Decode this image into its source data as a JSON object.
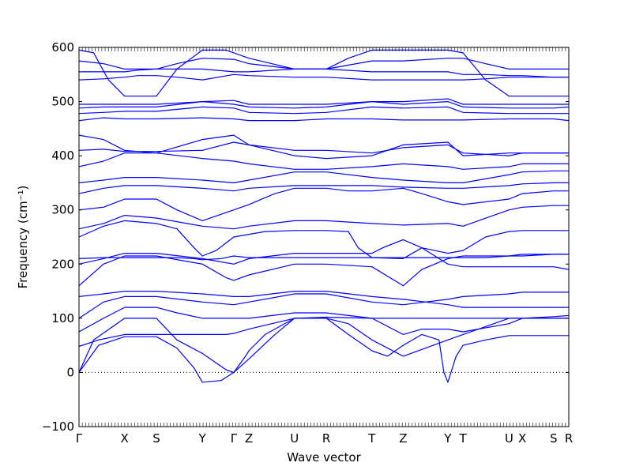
{
  "chart_data": {
    "type": "line",
    "title": "",
    "xlabel": "Wave vector",
    "ylabel": "Frequency (cm⁻¹)",
    "ylim": [
      -100,
      600
    ],
    "yticks": [
      -100,
      0,
      100,
      200,
      300,
      400,
      500,
      600
    ],
    "xlim": [
      0,
      1
    ],
    "high_symmetry_points": [
      {
        "label": "Γ",
        "x": 0.0
      },
      {
        "label": "X",
        "x": 0.093
      },
      {
        "label": "S",
        "x": 0.158
      },
      {
        "label": "Y",
        "x": 0.252
      },
      {
        "label": "Γ",
        "x": 0.316
      },
      {
        "label": "Z",
        "x": 0.347
      },
      {
        "label": "U",
        "x": 0.44
      },
      {
        "label": "R",
        "x": 0.505
      },
      {
        "label": "T",
        "x": 0.598
      },
      {
        "label": "Z",
        "x": 0.662
      },
      {
        "label": "Y",
        "x": 0.753
      },
      {
        "label": "T",
        "x": 0.784
      },
      {
        "label": "U",
        "x": 0.878
      },
      {
        "label": "X",
        "x": 0.905
      },
      {
        "label": "S",
        "x": 0.969
      },
      {
        "label": "R",
        "x": 1.0
      }
    ],
    "zero_line": true,
    "series_color": "#0000ff",
    "series": [
      {
        "x": [
          0,
          0.04,
          0.093,
          0.158,
          0.2,
          0.235,
          0.252,
          0.29,
          0.316,
          0.34,
          0.347,
          0.38,
          0.44,
          0.505,
          0.55,
          0.598,
          0.63,
          0.662,
          0.7,
          0.735,
          0.745,
          0.753,
          0.77,
          0.784,
          0.83,
          0.878,
          0.905,
          0.969,
          1.0
        ],
        "y": [
          0,
          50,
          66,
          66,
          45,
          8,
          -18,
          -15,
          0,
          30,
          40,
          70,
          100,
          100,
          70,
          40,
          30,
          50,
          70,
          60,
          0,
          -18,
          30,
          50,
          60,
          68,
          68,
          68,
          68
        ]
      },
      {
        "x": [
          0,
          0.03,
          0.093,
          0.158,
          0.2,
          0.252,
          0.3,
          0.316,
          0.347,
          0.4,
          0.44,
          0.505,
          0.598,
          0.662,
          0.7,
          0.753,
          0.784,
          0.878,
          0.905,
          0.969,
          1.0
        ],
        "y": [
          0,
          60,
          100,
          100,
          60,
          35,
          5,
          0,
          25,
          70,
          100,
          102,
          100,
          70,
          80,
          80,
          75,
          90,
          100,
          103,
          105
        ]
      },
      {
        "x": [
          0,
          0.04,
          0.093,
          0.158,
          0.2,
          0.252,
          0.3,
          0.316,
          0.347,
          0.44,
          0.505,
          0.55,
          0.598,
          0.662,
          0.753,
          0.784,
          0.878,
          0.905,
          0.969,
          1.0
        ],
        "y": [
          48,
          60,
          70,
          70,
          70,
          70,
          70,
          72,
          80,
          100,
          100,
          90,
          60,
          30,
          60,
          70,
          100,
          100,
          100,
          100
        ]
      },
      {
        "x": [
          0,
          0.05,
          0.093,
          0.158,
          0.2,
          0.252,
          0.316,
          0.347,
          0.44,
          0.505,
          0.598,
          0.662,
          0.753,
          0.784,
          0.878,
          0.905,
          0.969,
          1.0
        ],
        "y": [
          75,
          100,
          120,
          120,
          110,
          100,
          100,
          100,
          110,
          110,
          100,
          100,
          100,
          100,
          100,
          100,
          100,
          100
        ]
      },
      {
        "x": [
          0,
          0.05,
          0.093,
          0.158,
          0.252,
          0.316,
          0.347,
          0.44,
          0.505,
          0.598,
          0.662,
          0.753,
          0.784,
          0.878,
          0.905,
          0.969,
          1.0
        ],
        "y": [
          100,
          130,
          140,
          140,
          130,
          125,
          130,
          145,
          145,
          130,
          125,
          135,
          140,
          145,
          148,
          148,
          148
        ]
      },
      {
        "x": [
          0,
          0.05,
          0.093,
          0.158,
          0.252,
          0.316,
          0.347,
          0.44,
          0.505,
          0.598,
          0.662,
          0.753,
          0.784,
          0.878,
          0.905,
          0.969,
          1.0
        ],
        "y": [
          140,
          145,
          150,
          150,
          145,
          140,
          140,
          150,
          150,
          140,
          135,
          125,
          120,
          120,
          120,
          120,
          120
        ]
      },
      {
        "x": [
          0,
          0.05,
          0.093,
          0.158,
          0.252,
          0.3,
          0.316,
          0.347,
          0.44,
          0.505,
          0.598,
          0.662,
          0.7,
          0.753,
          0.784,
          0.878,
          0.905,
          0.969,
          1.0
        ],
        "y": [
          160,
          200,
          215,
          215,
          200,
          175,
          170,
          180,
          200,
          200,
          195,
          160,
          190,
          210,
          215,
          215,
          218,
          218,
          218
        ]
      },
      {
        "x": [
          0,
          0.05,
          0.093,
          0.158,
          0.252,
          0.316,
          0.347,
          0.44,
          0.505,
          0.598,
          0.62,
          0.662,
          0.7,
          0.753,
          0.784,
          0.878,
          0.905,
          0.969,
          1.0
        ],
        "y": [
          200,
          210,
          220,
          220,
          210,
          200,
          210,
          220,
          220,
          220,
          230,
          245,
          230,
          200,
          195,
          195,
          195,
          195,
          190
        ]
      },
      {
        "x": [
          0,
          0.05,
          0.093,
          0.158,
          0.2,
          0.235,
          0.252,
          0.29,
          0.316,
          0.347,
          0.44,
          0.505,
          0.55,
          0.598,
          0.662,
          0.753,
          0.784,
          0.83,
          0.878,
          0.905,
          0.969,
          1.0
        ],
        "y": [
          210,
          212,
          212,
          212,
          212,
          210,
          208,
          210,
          215,
          212,
          212,
          212,
          212,
          212,
          212,
          212,
          212,
          212,
          215,
          215,
          218,
          218
        ]
      },
      {
        "x": [
          0,
          0.05,
          0.093,
          0.158,
          0.2,
          0.235,
          0.252,
          0.28,
          0.316,
          0.347,
          0.38,
          0.44,
          0.505,
          0.55,
          0.57,
          0.598,
          0.662,
          0.7,
          0.753,
          0.784,
          0.83,
          0.878,
          0.905,
          0.969,
          1.0
        ],
        "y": [
          250,
          270,
          280,
          275,
          265,
          230,
          215,
          225,
          250,
          255,
          260,
          262,
          262,
          260,
          230,
          212,
          210,
          230,
          220,
          225,
          250,
          260,
          262,
          262,
          262
        ]
      },
      {
        "x": [
          0,
          0.05,
          0.093,
          0.158,
          0.252,
          0.316,
          0.347,
          0.44,
          0.505,
          0.598,
          0.662,
          0.753,
          0.784,
          0.878,
          0.905,
          0.969,
          1.0
        ],
        "y": [
          265,
          275,
          290,
          285,
          270,
          265,
          270,
          280,
          280,
          275,
          272,
          275,
          270,
          300,
          305,
          308,
          308
        ]
      },
      {
        "x": [
          0,
          0.05,
          0.093,
          0.158,
          0.2,
          0.252,
          0.316,
          0.347,
          0.4,
          0.44,
          0.505,
          0.55,
          0.598,
          0.662,
          0.7,
          0.753,
          0.784,
          0.878,
          0.905,
          0.969,
          1.0
        ],
        "y": [
          300,
          305,
          320,
          320,
          300,
          280,
          300,
          310,
          330,
          340,
          340,
          335,
          335,
          340,
          330,
          315,
          310,
          320,
          330,
          335,
          335
        ]
      },
      {
        "x": [
          0,
          0.05,
          0.093,
          0.158,
          0.252,
          0.316,
          0.347,
          0.44,
          0.505,
          0.598,
          0.662,
          0.753,
          0.784,
          0.878,
          0.905,
          0.969,
          1.0
        ],
        "y": [
          330,
          340,
          345,
          345,
          340,
          335,
          340,
          345,
          345,
          345,
          342,
          340,
          340,
          345,
          348,
          350,
          350
        ]
      },
      {
        "x": [
          0,
          0.05,
          0.093,
          0.158,
          0.252,
          0.316,
          0.347,
          0.44,
          0.505,
          0.598,
          0.662,
          0.753,
          0.784,
          0.878,
          0.905,
          0.969,
          1.0
        ],
        "y": [
          350,
          355,
          360,
          360,
          355,
          350,
          355,
          370,
          370,
          360,
          355,
          350,
          350,
          365,
          370,
          372,
          372
        ]
      },
      {
        "x": [
          0,
          0.05,
          0.093,
          0.158,
          0.252,
          0.316,
          0.347,
          0.44,
          0.505,
          0.598,
          0.662,
          0.753,
          0.784,
          0.878,
          0.905,
          0.969,
          1.0
        ],
        "y": [
          380,
          390,
          405,
          405,
          395,
          390,
          385,
          375,
          375,
          380,
          385,
          380,
          375,
          380,
          385,
          385,
          385
        ]
      },
      {
        "x": [
          0,
          0.05,
          0.093,
          0.158,
          0.252,
          0.316,
          0.347,
          0.44,
          0.505,
          0.598,
          0.662,
          0.753,
          0.784,
          0.878,
          0.905,
          0.969,
          1.0
        ],
        "y": [
          410,
          412,
          408,
          408,
          410,
          425,
          420,
          410,
          410,
          405,
          415,
          420,
          405,
          400,
          405,
          405,
          405
        ]
      },
      {
        "x": [
          0,
          0.05,
          0.093,
          0.158,
          0.252,
          0.316,
          0.347,
          0.44,
          0.505,
          0.598,
          0.662,
          0.753,
          0.784,
          0.878,
          0.905,
          0.969,
          1.0
        ],
        "y": [
          438,
          430,
          410,
          405,
          430,
          438,
          420,
          400,
          395,
          400,
          420,
          425,
          400,
          405,
          405,
          405,
          405
        ]
      },
      {
        "x": [
          0,
          0.05,
          0.093,
          0.158,
          0.252,
          0.316,
          0.347,
          0.44,
          0.505,
          0.598,
          0.662,
          0.753,
          0.784,
          0.878,
          0.905,
          0.969,
          1.0
        ],
        "y": [
          465,
          470,
          468,
          468,
          470,
          468,
          465,
          465,
          468,
          468,
          466,
          466,
          466,
          468,
          468,
          468,
          465
        ]
      },
      {
        "x": [
          0,
          0.05,
          0.093,
          0.158,
          0.252,
          0.316,
          0.347,
          0.44,
          0.505,
          0.598,
          0.662,
          0.753,
          0.784,
          0.878,
          0.905,
          0.969,
          1.0
        ],
        "y": [
          478,
          480,
          482,
          482,
          490,
          488,
          480,
          478,
          480,
          490,
          488,
          490,
          480,
          478,
          478,
          478,
          478
        ]
      },
      {
        "x": [
          0,
          0.05,
          0.093,
          0.158,
          0.252,
          0.316,
          0.347,
          0.44,
          0.505,
          0.598,
          0.662,
          0.753,
          0.784,
          0.878,
          0.905,
          0.969,
          1.0
        ],
        "y": [
          488,
          490,
          490,
          490,
          500,
          495,
          490,
          488,
          490,
          500,
          495,
          500,
          490,
          488,
          488,
          488,
          490
        ]
      },
      {
        "x": [
          0,
          0.05,
          0.093,
          0.158,
          0.252,
          0.316,
          0.347,
          0.44,
          0.505,
          0.598,
          0.662,
          0.753,
          0.784,
          0.878,
          0.905,
          0.969,
          1.0
        ],
        "y": [
          495,
          495,
          495,
          495,
          500,
          502,
          495,
          495,
          495,
          500,
          500,
          505,
          495,
          495,
          495,
          495,
          495
        ]
      },
      {
        "x": [
          0,
          0.05,
          0.093,
          0.12,
          0.158,
          0.2,
          0.252,
          0.316,
          0.347,
          0.44,
          0.505,
          0.598,
          0.662,
          0.753,
          0.784,
          0.83,
          0.878,
          0.905,
          0.969,
          1.0
        ],
        "y": [
          540,
          542,
          545,
          548,
          548,
          545,
          540,
          550,
          548,
          545,
          545,
          540,
          540,
          540,
          540,
          542,
          545,
          545,
          545,
          545
        ]
      },
      {
        "x": [
          0,
          0.05,
          0.093,
          0.12,
          0.158,
          0.2,
          0.252,
          0.316,
          0.347,
          0.44,
          0.505,
          0.598,
          0.662,
          0.753,
          0.784,
          0.83,
          0.878,
          0.905,
          0.969,
          1.0
        ],
        "y": [
          555,
          555,
          555,
          558,
          560,
          560,
          560,
          555,
          555,
          560,
          560,
          555,
          555,
          555,
          550,
          550,
          548,
          548,
          545,
          545
        ]
      },
      {
        "x": [
          0,
          0.05,
          0.093,
          0.12,
          0.158,
          0.2,
          0.252,
          0.316,
          0.347,
          0.44,
          0.505,
          0.598,
          0.662,
          0.753,
          0.784,
          0.83,
          0.878,
          0.905,
          0.969,
          1.0
        ],
        "y": [
          575,
          570,
          560,
          560,
          560,
          570,
          580,
          578,
          570,
          560,
          560,
          575,
          575,
          580,
          580,
          570,
          560,
          560,
          560,
          560
        ]
      },
      {
        "x": [
          0,
          0.03,
          0.06,
          0.093,
          0.158,
          0.2,
          0.252,
          0.3,
          0.316,
          0.347,
          0.44,
          0.505,
          0.55,
          0.598,
          0.662,
          0.753,
          0.784,
          0.83,
          0.878,
          0.905,
          0.969,
          1.0
        ],
        "y": [
          595,
          590,
          540,
          510,
          510,
          560,
          595,
          595,
          590,
          580,
          560,
          560,
          580,
          595,
          595,
          595,
          590,
          540,
          510,
          510,
          510,
          510
        ]
      }
    ]
  }
}
